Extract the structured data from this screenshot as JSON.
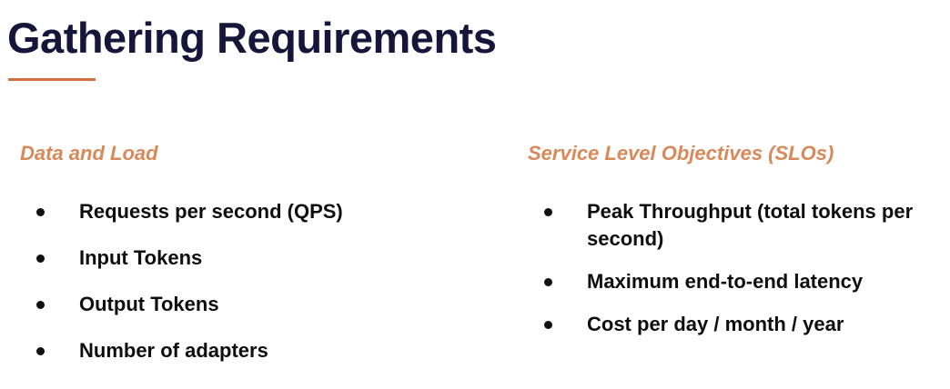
{
  "title": "Gathering Requirements",
  "accent_color": "#d2703f",
  "heading_color": "#d8895a",
  "left": {
    "heading": "Data and Load",
    "items": [
      "Requests per second (QPS)",
      "Input Tokens",
      "Output Tokens",
      "Number of adapters"
    ]
  },
  "right": {
    "heading": "Service Level Objectives (SLOs)",
    "items": [
      "Peak Throughput (total tokens per second)",
      "Maximum end-to-end latency",
      "Cost per day / month / year"
    ]
  }
}
